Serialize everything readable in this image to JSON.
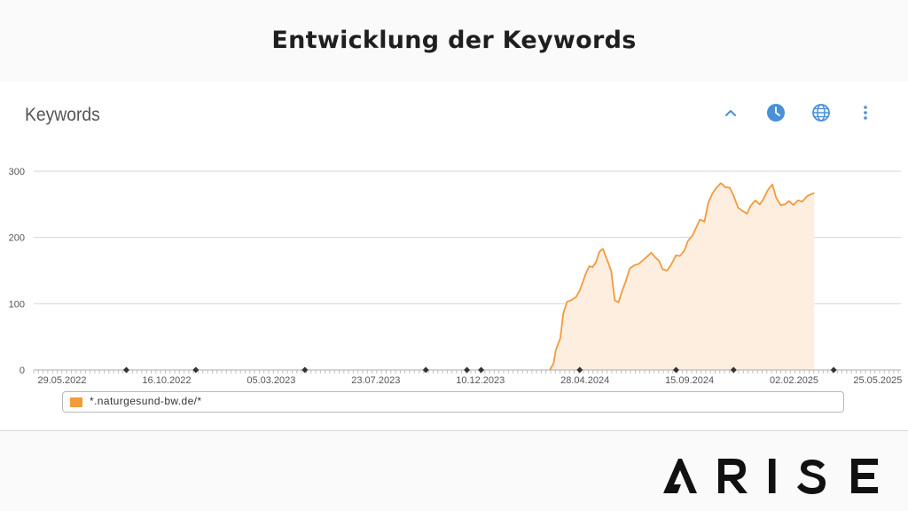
{
  "header": {
    "title": "Entwicklung der Keywords"
  },
  "panel": {
    "title": "Keywords"
  },
  "toolbar": {
    "icons": [
      "chevron-up-icon",
      "clock-icon",
      "globe-icon",
      "more-vertical-icon"
    ],
    "accent": "#4a90d9"
  },
  "chart_data": {
    "type": "area",
    "title": "",
    "xlabel": "",
    "ylabel": "",
    "ylim": [
      0,
      300
    ],
    "yticks": [
      0,
      100,
      200,
      300
    ],
    "xlim": [
      "2022-04-21",
      "2025-06-25"
    ],
    "xtick_labels": [
      "29.05.2022",
      "16.10.2022",
      "05.03.2023",
      "23.07.2023",
      "10.12.2023",
      "28.04.2024",
      "15.09.2024",
      "02.02.2025",
      "25.05.2025"
    ],
    "xtick_dates": [
      "2022-05-29",
      "2022-10-16",
      "2023-03-05",
      "2023-07-23",
      "2023-12-10",
      "2024-04-28",
      "2024-09-15",
      "2025-02-02",
      "2025-05-25"
    ],
    "event_marker_dates": [
      "2022-08-23",
      "2022-11-24",
      "2023-04-19",
      "2023-09-28",
      "2023-11-22",
      "2023-12-11",
      "2024-04-21",
      "2024-08-28",
      "2024-11-13",
      "2025-03-27"
    ],
    "grid": true,
    "legend_position": "bottom",
    "series": [
      {
        "name": "*.naturgesund-bw.de/*",
        "color": "#f39a3c",
        "fill": "#fdeee0",
        "points": [
          [
            "2024-03-12",
            0
          ],
          [
            "2024-03-17",
            10
          ],
          [
            "2024-03-20",
            30
          ],
          [
            "2024-03-26",
            48
          ],
          [
            "2024-03-30",
            85
          ],
          [
            "2024-04-04",
            103
          ],
          [
            "2024-04-09",
            105
          ],
          [
            "2024-04-16",
            110
          ],
          [
            "2024-04-21",
            120
          ],
          [
            "2024-04-25",
            132
          ],
          [
            "2024-04-29",
            145
          ],
          [
            "2024-05-04",
            157
          ],
          [
            "2024-05-08",
            155
          ],
          [
            "2024-05-13",
            163
          ],
          [
            "2024-05-17",
            178
          ],
          [
            "2024-05-22",
            183
          ],
          [
            "2024-05-27",
            168
          ],
          [
            "2024-06-02",
            150
          ],
          [
            "2024-06-07",
            105
          ],
          [
            "2024-06-12",
            102
          ],
          [
            "2024-06-17",
            120
          ],
          [
            "2024-06-22",
            135
          ],
          [
            "2024-06-27",
            153
          ],
          [
            "2024-07-03",
            158
          ],
          [
            "2024-07-09",
            160
          ],
          [
            "2024-07-14",
            165
          ],
          [
            "2024-07-20",
            171
          ],
          [
            "2024-07-26",
            177
          ],
          [
            "2024-07-31",
            170
          ],
          [
            "2024-08-05",
            165
          ],
          [
            "2024-08-10",
            152
          ],
          [
            "2024-08-16",
            150
          ],
          [
            "2024-08-21",
            158
          ],
          [
            "2024-08-28",
            173
          ],
          [
            "2024-09-02",
            172
          ],
          [
            "2024-09-08",
            180
          ],
          [
            "2024-09-13",
            195
          ],
          [
            "2024-09-19",
            203
          ],
          [
            "2024-09-24",
            215
          ],
          [
            "2024-09-29",
            227
          ],
          [
            "2024-10-05",
            224
          ],
          [
            "2024-10-10",
            252
          ],
          [
            "2024-10-16",
            267
          ],
          [
            "2024-10-21",
            275
          ],
          [
            "2024-10-27",
            282
          ],
          [
            "2024-11-02",
            276
          ],
          [
            "2024-11-08",
            275
          ],
          [
            "2024-11-13",
            263
          ],
          [
            "2024-11-19",
            245
          ],
          [
            "2024-11-25",
            240
          ],
          [
            "2024-12-01",
            236
          ],
          [
            "2024-12-06",
            248
          ],
          [
            "2024-12-12",
            256
          ],
          [
            "2024-12-18",
            250
          ],
          [
            "2024-12-23",
            258
          ],
          [
            "2024-12-29",
            272
          ],
          [
            "2025-01-04",
            280
          ],
          [
            "2025-01-09",
            260
          ],
          [
            "2025-01-15",
            249
          ],
          [
            "2025-01-21",
            250
          ],
          [
            "2025-01-26",
            255
          ],
          [
            "2025-02-01",
            249
          ],
          [
            "2025-02-07",
            256
          ],
          [
            "2025-02-13",
            254
          ],
          [
            "2025-02-19",
            262
          ],
          [
            "2025-02-24",
            265
          ],
          [
            "2025-03-01",
            267
          ]
        ]
      }
    ]
  },
  "legend": {
    "label": "*.naturgesund-bw.de/*"
  },
  "logo": {
    "text": "ARISE"
  }
}
